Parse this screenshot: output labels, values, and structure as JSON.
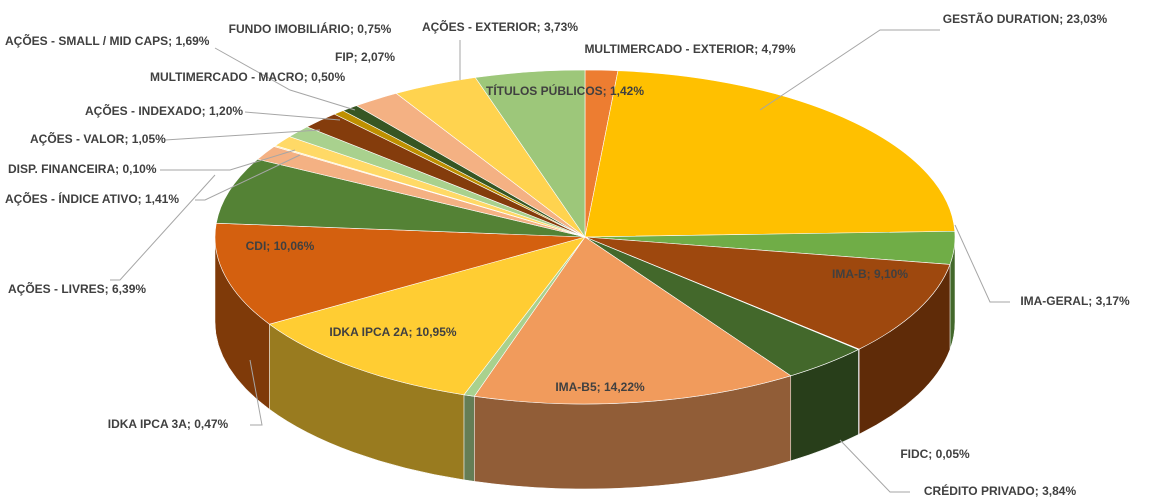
{
  "chart_data": {
    "type": "pie3d",
    "values": [
      1.42,
      23.03,
      3.17,
      9.1,
      0.05,
      3.84,
      14.22,
      0.47,
      10.95,
      10.06,
      6.39,
      1.41,
      0.1,
      1.05,
      1.2,
      1.69,
      0.5,
      0.75,
      2.07,
      3.73,
      4.79
    ],
    "value_labels": [
      "TÍTULOS PÚBLICOS; 1,42%",
      "GESTÃO DURATION; 23,03%",
      "IMA-GERAL; 3,17%",
      "IMA-B; 9,10%",
      "FIDC; 0,05%",
      "CRÉDITO PRIVADO; 3,84%",
      "IMA-B5; 14,22%",
      "IDKA IPCA 3A; 0,47%",
      "IDKA IPCA 2A; 10,95%",
      "CDI; 10,06%",
      "AÇÕES - LIVRES; 6,39%",
      "AÇÕES - ÍNDICE ATIVO; 1,41%",
      "DISP. FINANCEIRA; 0,10%",
      "AÇÕES - VALOR; 1,05%",
      "AÇÕES - INDEXADO; 1,20%",
      "AÇÕES - SMALL / MID CAPS; 1,69%",
      "MULTIMERCADO - MACRO; 0,50%",
      "FUNDO IMOBILIÁRIO; 0,75%",
      "FIP; 2,07%",
      "AÇÕES - EXTERIOR; 3,73%",
      "MULTIMERCADO - EXTERIOR; 4,79%"
    ],
    "colors": [
      "#ed7d31",
      "#ffc000",
      "#70ad47",
      "#9e480e",
      "#7f7f7f",
      "#43682b",
      "#f19b5c",
      "#a9d18e",
      "#ffcd33",
      "#d4600f",
      "#548235",
      "#f4b183",
      "#ffe699",
      "#ffd966",
      "#a9d18e",
      "#843c0c",
      "#bf9000",
      "#375623",
      "#f4b183",
      "#ffd34f",
      "#9dc77a"
    ]
  }
}
